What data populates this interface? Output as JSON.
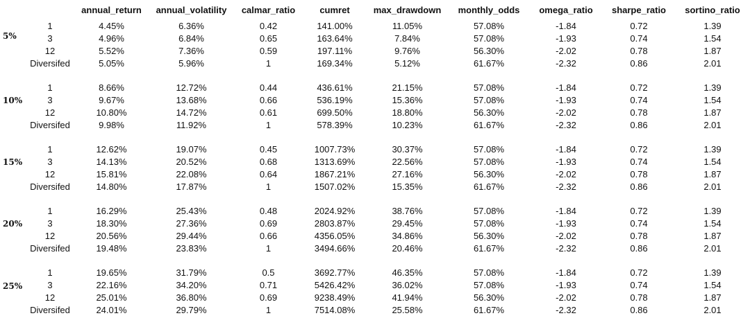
{
  "headers": [
    "",
    "annual_return",
    "annual_volatility",
    "calmar_ratio",
    "cumret",
    "max_drawdown",
    "monthly_odds",
    "omega_ratio",
    "sharpe_ratio",
    "sortino_ratio"
  ],
  "groups": [
    {
      "label": "5%",
      "rows": [
        [
          "1",
          "4.45%",
          "6.36%",
          "0.42",
          "141.00%",
          "11.05%",
          "57.08%",
          "-1.84",
          "0.72",
          "1.39"
        ],
        [
          "3",
          "4.96%",
          "6.84%",
          "0.65",
          "163.64%",
          "7.84%",
          "57.08%",
          "-1.93",
          "0.74",
          "1.54"
        ],
        [
          "12",
          "5.52%",
          "7.36%",
          "0.59",
          "197.11%",
          "9.76%",
          "56.30%",
          "-2.02",
          "0.78",
          "1.87"
        ],
        [
          "Diversifed",
          "5.05%",
          "5.96%",
          "1",
          "169.34%",
          "5.12%",
          "61.67%",
          "-2.32",
          "0.86",
          "2.01"
        ]
      ]
    },
    {
      "label": "10%",
      "rows": [
        [
          "1",
          "8.66%",
          "12.72%",
          "0.44",
          "436.61%",
          "21.15%",
          "57.08%",
          "-1.84",
          "0.72",
          "1.39"
        ],
        [
          "3",
          "9.67%",
          "13.68%",
          "0.66",
          "536.19%",
          "15.36%",
          "57.08%",
          "-1.93",
          "0.74",
          "1.54"
        ],
        [
          "12",
          "10.80%",
          "14.72%",
          "0.61",
          "699.50%",
          "18.80%",
          "56.30%",
          "-2.02",
          "0.78",
          "1.87"
        ],
        [
          "Diversifed",
          "9.98%",
          "11.92%",
          "1",
          "578.39%",
          "10.23%",
          "61.67%",
          "-2.32",
          "0.86",
          "2.01"
        ]
      ]
    },
    {
      "label": "15%",
      "rows": [
        [
          "1",
          "12.62%",
          "19.07%",
          "0.45",
          "1007.73%",
          "30.37%",
          "57.08%",
          "-1.84",
          "0.72",
          "1.39"
        ],
        [
          "3",
          "14.13%",
          "20.52%",
          "0.68",
          "1313.69%",
          "22.56%",
          "57.08%",
          "-1.93",
          "0.74",
          "1.54"
        ],
        [
          "12",
          "15.81%",
          "22.08%",
          "0.64",
          "1867.21%",
          "27.16%",
          "56.30%",
          "-2.02",
          "0.78",
          "1.87"
        ],
        [
          "Diversifed",
          "14.80%",
          "17.87%",
          "1",
          "1507.02%",
          "15.35%",
          "61.67%",
          "-2.32",
          "0.86",
          "2.01"
        ]
      ]
    },
    {
      "label": "20%",
      "rows": [
        [
          "1",
          "16.29%",
          "25.43%",
          "0.48",
          "2024.92%",
          "38.76%",
          "57.08%",
          "-1.84",
          "0.72",
          "1.39"
        ],
        [
          "3",
          "18.30%",
          "27.36%",
          "0.69",
          "2803.87%",
          "29.45%",
          "57.08%",
          "-1.93",
          "0.74",
          "1.54"
        ],
        [
          "12",
          "20.56%",
          "29.44%",
          "0.66",
          "4356.05%",
          "34.86%",
          "56.30%",
          "-2.02",
          "0.78",
          "1.87"
        ],
        [
          "Diversifed",
          "19.48%",
          "23.83%",
          "1",
          "3494.66%",
          "20.46%",
          "61.67%",
          "-2.32",
          "0.86",
          "2.01"
        ]
      ]
    },
    {
      "label": "25%",
      "rows": [
        [
          "1",
          "19.65%",
          "31.79%",
          "0.5",
          "3692.77%",
          "46.35%",
          "57.08%",
          "-1.84",
          "0.72",
          "1.39"
        ],
        [
          "3",
          "22.16%",
          "34.20%",
          "0.71",
          "5426.42%",
          "36.02%",
          "57.08%",
          "-1.93",
          "0.74",
          "1.54"
        ],
        [
          "12",
          "25.01%",
          "36.80%",
          "0.69",
          "9238.49%",
          "41.94%",
          "56.30%",
          "-2.02",
          "0.78",
          "1.87"
        ],
        [
          "Diversifed",
          "24.01%",
          "29.79%",
          "1",
          "7514.08%",
          "25.58%",
          "61.67%",
          "-2.32",
          "0.86",
          "2.01"
        ]
      ]
    }
  ]
}
